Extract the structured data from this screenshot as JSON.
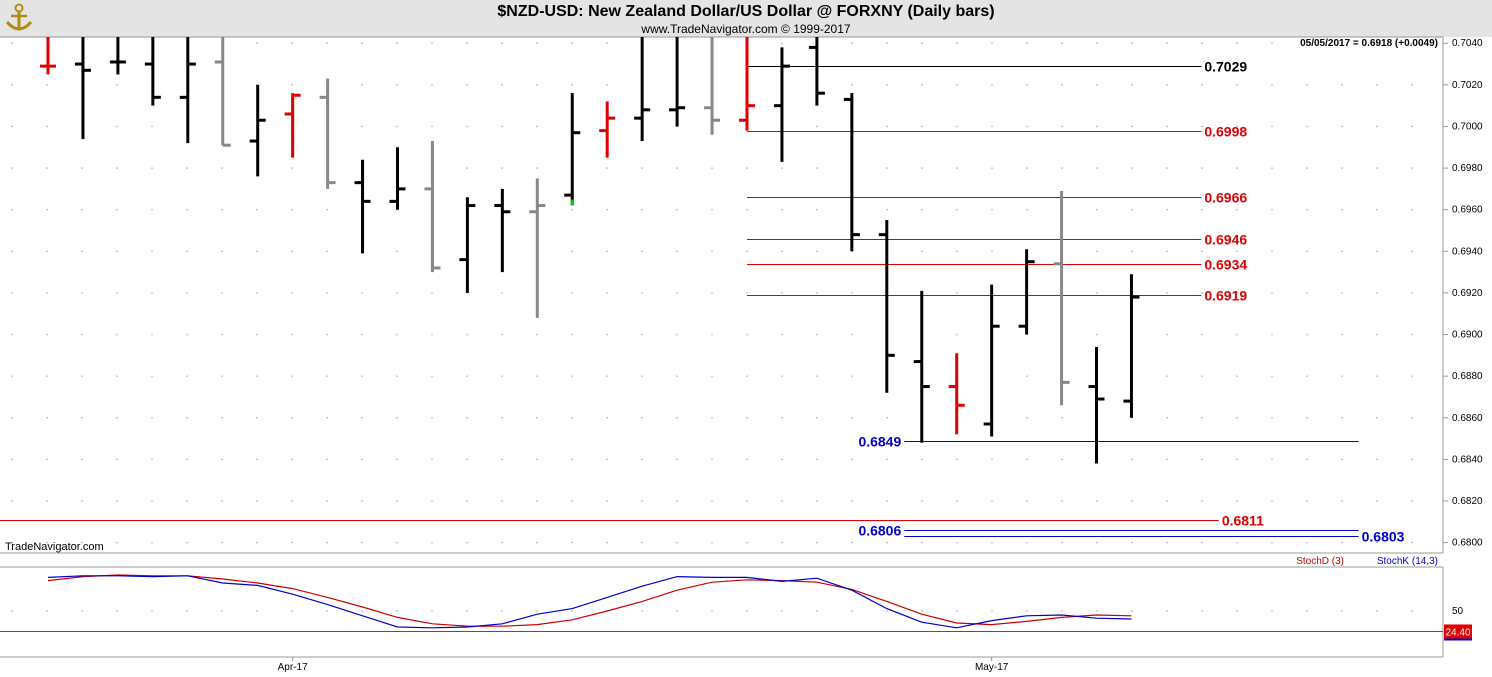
{
  "header": {
    "title": "$NZD-USD:  New Zealand Dollar/US Dollar @ FORXNY  (Daily bars)",
    "copyright": "www.TradeNavigator.com © 1999-2017",
    "last_quote": "05/05/2017 = 0.6918 (+0.0049)"
  },
  "watermark": "TradeNavigator.com",
  "colors": {
    "up": "#000000",
    "down": "#e00000",
    "neutral": "#888888",
    "signal": "#00cc00",
    "level_red": "#e00000",
    "level_blue": "#0000cc",
    "stochD": "#cc0000",
    "stochK": "#0000cc"
  },
  "chart_data": [
    {
      "type": "ohlc",
      "title": "$NZD-USD:  New Zealand Dollar/US Dollar @ FORXNY  (Daily bars)",
      "ylim": [
        0.6795,
        0.7043
      ],
      "y_ticks": [
        "0.6800",
        "0.6820",
        "0.6840",
        "0.6860",
        "0.6880",
        "0.6900",
        "0.6920",
        "0.6940",
        "0.6960",
        "0.6980",
        "0.7000",
        "0.7020",
        "0.7040"
      ],
      "x_ticks": [
        {
          "label": "Apr-17",
          "index": 7
        },
        {
          "label": "May-17",
          "index": 27
        }
      ],
      "bars": [
        {
          "o": 0.7029,
          "h": 0.7048,
          "l": 0.7025,
          "c": 0.7029,
          "color": "down"
        },
        {
          "o": 0.703,
          "h": 0.7045,
          "l": 0.6994,
          "c": 0.7027,
          "color": "up"
        },
        {
          "o": 0.7031,
          "h": 0.7045,
          "l": 0.7025,
          "c": 0.7031,
          "color": "up"
        },
        {
          "o": 0.703,
          "h": 0.7043,
          "l": 0.701,
          "c": 0.7014,
          "color": "up"
        },
        {
          "o": 0.7014,
          "h": 0.7043,
          "l": 0.6992,
          "c": 0.703,
          "color": "up"
        },
        {
          "o": 0.7031,
          "h": 0.7043,
          "l": 0.6991,
          "c": 0.6991,
          "color": "neutral"
        },
        {
          "o": 0.6993,
          "h": 0.702,
          "l": 0.6976,
          "c": 0.7003,
          "color": "up"
        },
        {
          "o": 0.7006,
          "h": 0.7016,
          "l": 0.6985,
          "c": 0.7015,
          "color": "down"
        },
        {
          "o": 0.7014,
          "h": 0.7023,
          "l": 0.697,
          "c": 0.6973,
          "color": "neutral"
        },
        {
          "o": 0.6973,
          "h": 0.6984,
          "l": 0.6939,
          "c": 0.6964,
          "color": "up"
        },
        {
          "o": 0.6964,
          "h": 0.699,
          "l": 0.696,
          "c": 0.697,
          "color": "up"
        },
        {
          "o": 0.697,
          "h": 0.6993,
          "l": 0.693,
          "c": 0.6932,
          "color": "neutral"
        },
        {
          "o": 0.6936,
          "h": 0.6966,
          "l": 0.692,
          "c": 0.6962,
          "color": "up"
        },
        {
          "o": 0.6962,
          "h": 0.697,
          "l": 0.693,
          "c": 0.6959,
          "color": "up"
        },
        {
          "o": 0.6959,
          "h": 0.6975,
          "l": 0.6908,
          "c": 0.6962,
          "color": "neutral"
        },
        {
          "o": 0.6967,
          "h": 0.7016,
          "l": 0.6962,
          "c": 0.6997,
          "color": "up",
          "signal": true
        },
        {
          "o": 0.6998,
          "h": 0.7012,
          "l": 0.6985,
          "c": 0.7004,
          "color": "down"
        },
        {
          "o": 0.7004,
          "h": 0.7043,
          "l": 0.6993,
          "c": 0.7008,
          "color": "up"
        },
        {
          "o": 0.7008,
          "h": 0.7043,
          "l": 0.7,
          "c": 0.7009,
          "color": "up"
        },
        {
          "o": 0.7009,
          "h": 0.7043,
          "l": 0.6996,
          "c": 0.7003,
          "color": "neutral"
        },
        {
          "o": 0.7003,
          "h": 0.7043,
          "l": 0.6998,
          "c": 0.701,
          "color": "down"
        },
        {
          "o": 0.701,
          "h": 0.7038,
          "l": 0.6983,
          "c": 0.7029,
          "color": "up"
        },
        {
          "o": 0.7038,
          "h": 0.7043,
          "l": 0.701,
          "c": 0.7016,
          "color": "up"
        },
        {
          "o": 0.7013,
          "h": 0.7016,
          "l": 0.694,
          "c": 0.6948,
          "color": "up"
        },
        {
          "o": 0.6948,
          "h": 0.6955,
          "l": 0.6872,
          "c": 0.689,
          "color": "up"
        },
        {
          "o": 0.6887,
          "h": 0.6921,
          "l": 0.6848,
          "c": 0.6875,
          "color": "up"
        },
        {
          "o": 0.6875,
          "h": 0.6891,
          "l": 0.6852,
          "c": 0.6866,
          "color": "down"
        },
        {
          "o": 0.6857,
          "h": 0.6924,
          "l": 0.6851,
          "c": 0.6904,
          "color": "up"
        },
        {
          "o": 0.6904,
          "h": 0.6941,
          "l": 0.69,
          "c": 0.6935,
          "color": "up"
        },
        {
          "o": 0.6934,
          "h": 0.6969,
          "l": 0.6866,
          "c": 0.6877,
          "color": "neutral"
        },
        {
          "o": 0.6875,
          "h": 0.6894,
          "l": 0.6838,
          "c": 0.6869,
          "color": "up"
        },
        {
          "o": 0.6868,
          "h": 0.6929,
          "l": 0.686,
          "c": 0.6918,
          "color": "up"
        }
      ],
      "levels": [
        {
          "label": "0.7029",
          "value": 0.7029,
          "color": "black",
          "from": 20,
          "to": 33
        },
        {
          "label": "0.6998",
          "value": 0.6998,
          "color": "level_red",
          "from": 20,
          "to": 33
        },
        {
          "label": "0.6966",
          "value": 0.6966,
          "color": "level_red",
          "from": 20,
          "to": 33
        },
        {
          "label": "0.6946",
          "value": 0.6946,
          "color": "level_red",
          "from": 20,
          "to": 33
        },
        {
          "label": "0.6934",
          "value": 0.6934,
          "color": "level_red",
          "from": 20,
          "to": 33
        },
        {
          "label": "0.6919",
          "value": 0.6919,
          "color": "level_red",
          "from": 20,
          "to": 33
        },
        {
          "label": "0.6849",
          "value": 0.6849,
          "color": "level_blue",
          "from": 24.5,
          "to": 37.5,
          "label_side": "left"
        },
        {
          "label": "0.6811",
          "value": 0.6811,
          "color": "level_red",
          "from": -1.5,
          "to": 33.5
        },
        {
          "label": "0.6806",
          "value": 0.6806,
          "color": "level_blue",
          "from": 24.5,
          "to": 37.5,
          "label_side": "left"
        },
        {
          "label": "0.6803",
          "value": 0.6803,
          "color": "level_blue",
          "from": 24.5,
          "to": 37.5
        }
      ]
    },
    {
      "type": "line",
      "title": "Stochastic",
      "ylim": [
        0,
        100
      ],
      "y_ticks": [
        "50"
      ],
      "series": [
        {
          "name": "StochD (3)",
          "color": "stochD",
          "values": [
            88,
            93,
            95,
            94,
            94,
            90,
            85,
            78,
            67,
            55,
            42,
            34,
            31,
            31,
            33,
            39,
            50,
            62,
            76,
            86,
            89,
            88,
            86,
            77,
            62,
            46,
            35,
            33,
            37,
            42,
            45,
            44
          ]
        },
        {
          "name": "StochK (14,3)",
          "color": "stochK",
          "values": [
            92,
            94,
            94,
            93,
            94,
            85,
            82,
            71,
            58,
            44,
            30,
            29,
            30,
            34,
            46,
            53,
            67,
            81,
            93,
            92,
            92,
            87,
            91,
            76,
            53,
            36,
            29,
            38,
            44,
            45,
            41,
            40
          ]
        }
      ],
      "last_label": "24.40",
      "reference_line": 24.4
    }
  ]
}
